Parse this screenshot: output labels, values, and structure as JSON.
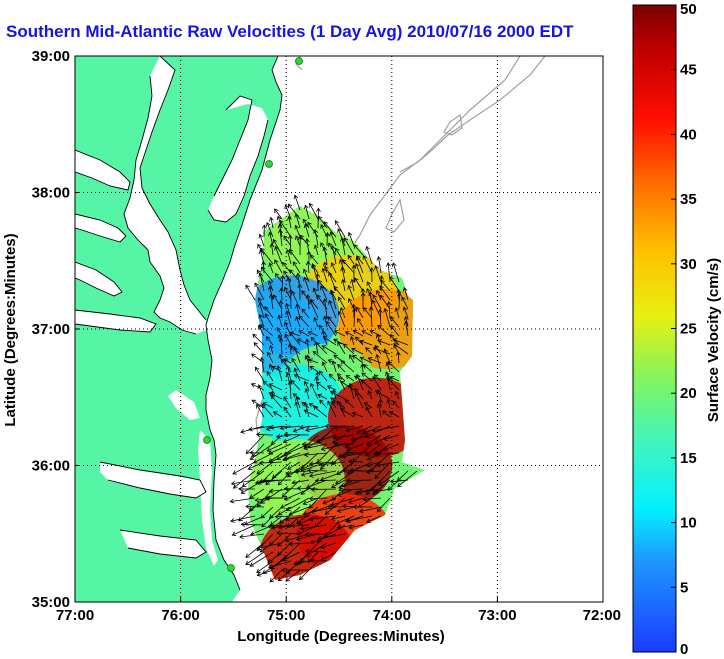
{
  "chart_data": {
    "type": "heatmap",
    "title": "Southern Mid-Atlantic Raw Velocities (1 Day Avg) 2010/07/16 2000 EDT",
    "xlabel": "Longitude (Degrees:Minutes)",
    "ylabel": "Latitude (Degrees:Minutes)",
    "xlim": [
      -77,
      -72
    ],
    "ylim": [
      35,
      39
    ],
    "x_ticks": [
      {
        "value": -77,
        "label": "77:00"
      },
      {
        "value": -76,
        "label": "76:00"
      },
      {
        "value": -75,
        "label": "75:00"
      },
      {
        "value": -74,
        "label": "74:00"
      },
      {
        "value": -73,
        "label": "73:00"
      },
      {
        "value": -72,
        "label": "72:00"
      }
    ],
    "y_ticks": [
      {
        "value": 35,
        "label": "35:00"
      },
      {
        "value": 36,
        "label": "36:00"
      },
      {
        "value": 37,
        "label": "37:00"
      },
      {
        "value": 38,
        "label": "38:00"
      },
      {
        "value": 39,
        "label": "39:00"
      }
    ],
    "grid": true,
    "colorbar": {
      "label": "Surface Velocity (cm/s)",
      "min": 0,
      "max": 50,
      "ticks": [
        {
          "value": 0,
          "label": "0"
        },
        {
          "value": 5,
          "label": "5"
        },
        {
          "value": 10,
          "label": "10"
        },
        {
          "value": 15,
          "label": "15"
        },
        {
          "value": 20,
          "label": "20"
        },
        {
          "value": 25,
          "label": "25"
        },
        {
          "value": 30,
          "label": "30"
        },
        {
          "value": 35,
          "label": "35"
        },
        {
          "value": 40,
          "label": "40"
        },
        {
          "value": 45,
          "label": "45"
        },
        {
          "value": 50,
          "label": "50"
        }
      ]
    },
    "land_color": "#55f5a5",
    "velocity_regions": [
      {
        "lon": -74.75,
        "lat": 37.6,
        "speed": 22
      },
      {
        "lon": -74.4,
        "lat": 37.25,
        "speed": 30
      },
      {
        "lon": -74.05,
        "lat": 37.0,
        "speed": 34
      },
      {
        "lon": -74.95,
        "lat": 37.1,
        "speed": 7
      },
      {
        "lon": -75.05,
        "lat": 36.95,
        "speed": 8
      },
      {
        "lon": -74.6,
        "lat": 36.6,
        "speed": 20
      },
      {
        "lon": -74.9,
        "lat": 36.45,
        "speed": 12
      },
      {
        "lon": -74.15,
        "lat": 36.35,
        "speed": 46
      },
      {
        "lon": -74.45,
        "lat": 36.0,
        "speed": 48
      },
      {
        "lon": -74.9,
        "lat": 35.9,
        "speed": 22
      },
      {
        "lon": -74.45,
        "lat": 35.5,
        "speed": 40
      },
      {
        "lon": -74.8,
        "lat": 35.35,
        "speed": 45
      }
    ]
  }
}
